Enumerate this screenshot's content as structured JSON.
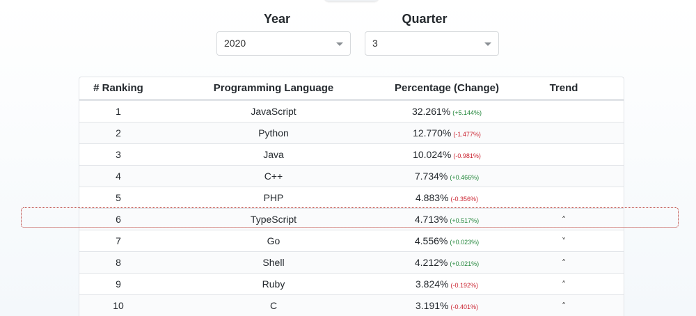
{
  "filters": {
    "year": {
      "label": "Year",
      "value": "2020"
    },
    "quarter": {
      "label": "Quarter",
      "value": "3"
    }
  },
  "table": {
    "headers": [
      "# Ranking",
      "Programming Language",
      "Percentage (Change)",
      "Trend"
    ],
    "rows": [
      {
        "rank": "1",
        "language": "JavaScript",
        "percentage": "32.261%",
        "change": "(+5.144%)",
        "change_sign": "pos",
        "trend": ""
      },
      {
        "rank": "2",
        "language": "Python",
        "percentage": "12.770%",
        "change": "(-1.477%)",
        "change_sign": "neg",
        "trend": ""
      },
      {
        "rank": "3",
        "language": "Java",
        "percentage": "10.024%",
        "change": "(-0.981%)",
        "change_sign": "neg",
        "trend": ""
      },
      {
        "rank": "4",
        "language": "C++",
        "percentage": "7.734%",
        "change": "(+0.466%)",
        "change_sign": "pos",
        "trend": ""
      },
      {
        "rank": "5",
        "language": "PHP",
        "percentage": "4.883%",
        "change": "(-0.356%)",
        "change_sign": "neg",
        "trend": ""
      },
      {
        "rank": "6",
        "language": "TypeScript",
        "percentage": "4.713%",
        "change": "(+0.517%)",
        "change_sign": "pos",
        "trend": "up"
      },
      {
        "rank": "7",
        "language": "Go",
        "percentage": "4.556%",
        "change": "(+0.023%)",
        "change_sign": "pos",
        "trend": "down"
      },
      {
        "rank": "8",
        "language": "Shell",
        "percentage": "4.212%",
        "change": "(+0.021%)",
        "change_sign": "pos",
        "trend": "up"
      },
      {
        "rank": "9",
        "language": "Ruby",
        "percentage": "3.824%",
        "change": "(-0.192%)",
        "change_sign": "neg",
        "trend": "up"
      },
      {
        "rank": "10",
        "language": "C",
        "percentage": "3.191%",
        "change": "(-0.401%)",
        "change_sign": "neg",
        "trend": "up"
      }
    ],
    "highlighted_rank": "6"
  },
  "icons": {
    "up": "chevron-up-icon",
    "down": "chevron-down-icon"
  },
  "colors": {
    "positive": "#22863a",
    "negative": "#cb2431",
    "highlight_border": "#b3261e"
  }
}
